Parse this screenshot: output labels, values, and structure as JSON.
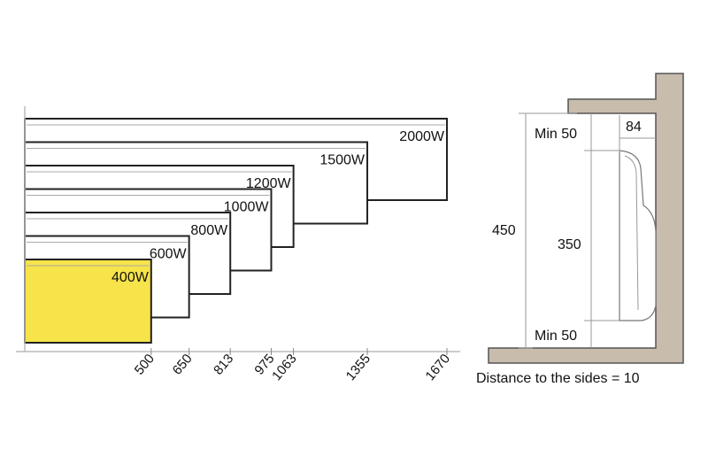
{
  "heaters": [
    {
      "label": "400W",
      "width": 500,
      "highlight": true
    },
    {
      "label": "600W",
      "width": 650,
      "highlight": false
    },
    {
      "label": "800W",
      "width": 813,
      "highlight": false
    },
    {
      "label": "1000W",
      "width": 975,
      "highlight": false
    },
    {
      "label": "1200W",
      "width": 1063,
      "highlight": false
    },
    {
      "label": "1500W",
      "width": 1355,
      "highlight": false
    },
    {
      "label": "2000W",
      "width": 1670,
      "highlight": false
    }
  ],
  "tick_labels": [
    "500",
    "650",
    "813",
    "975",
    "1063",
    "1355",
    "1670"
  ],
  "side_view": {
    "total_height": "450",
    "heater_height": "350",
    "min_top": "Min 50",
    "min_bottom": "Min 50",
    "depth": "84"
  },
  "caption": "Distance to the sides = 10",
  "colors": {
    "highlight_fill": "#f7e34a",
    "wall": "#c8bcad",
    "outline": "#222222"
  }
}
